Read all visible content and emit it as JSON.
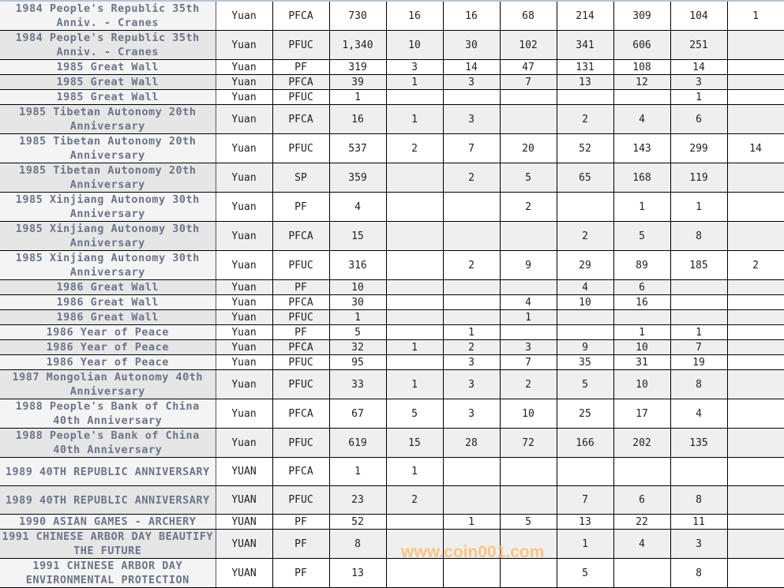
{
  "table": {
    "rows": [
      {
        "name": "1984 People's Republic 35th Anniv. - Cranes",
        "unit": "Yuan",
        "type": "PFCA",
        "total": "730",
        "grades": [
          "16",
          "16",
          "68",
          "214",
          "309",
          "104",
          "1"
        ]
      },
      {
        "name": "1984 People's Republic 35th Anniv. - Cranes",
        "unit": "Yuan",
        "type": "PFUC",
        "total": "1,340",
        "grades": [
          "10",
          "30",
          "102",
          "341",
          "606",
          "251",
          ""
        ]
      },
      {
        "name": "1985 Great Wall",
        "unit": "Yuan",
        "type": "PF",
        "total": "319",
        "grades": [
          "3",
          "14",
          "47",
          "131",
          "108",
          "14",
          ""
        ]
      },
      {
        "name": "1985 Great Wall",
        "unit": "Yuan",
        "type": "PFCA",
        "total": "39",
        "grades": [
          "1",
          "3",
          "7",
          "13",
          "12",
          "3",
          ""
        ]
      },
      {
        "name": "1985 Great Wall",
        "unit": "Yuan",
        "type": "PFUC",
        "total": "1",
        "grades": [
          "",
          "",
          "",
          "",
          "",
          "1",
          ""
        ]
      },
      {
        "name": "1985 Tibetan Autonomy 20th Anniversary",
        "unit": "Yuan",
        "type": "PFCA",
        "total": "16",
        "grades": [
          "1",
          "3",
          "",
          "2",
          "4",
          "6",
          ""
        ]
      },
      {
        "name": "1985 Tibetan Autonomy 20th Anniversary",
        "unit": "Yuan",
        "type": "PFUC",
        "total": "537",
        "grades": [
          "2",
          "7",
          "20",
          "52",
          "143",
          "299",
          "14"
        ]
      },
      {
        "name": "1985 Tibetan Autonomy 20th Anniversary",
        "unit": "Yuan",
        "type": "SP",
        "total": "359",
        "grades": [
          "",
          "2",
          "5",
          "65",
          "168",
          "119",
          ""
        ]
      },
      {
        "name": "1985 Xinjiang Autonomy 30th Anniversary",
        "unit": "Yuan",
        "type": "PF",
        "total": "4",
        "grades": [
          "",
          "",
          "2",
          "",
          "1",
          "1",
          ""
        ]
      },
      {
        "name": "1985 Xinjiang Autonomy 30th Anniversary",
        "unit": "Yuan",
        "type": "PFCA",
        "total": "15",
        "grades": [
          "",
          "",
          "",
          "2",
          "5",
          "8",
          ""
        ]
      },
      {
        "name": "1985 Xinjiang Autonomy 30th Anniversary",
        "unit": "Yuan",
        "type": "PFUC",
        "total": "316",
        "grades": [
          "",
          "2",
          "9",
          "29",
          "89",
          "185",
          "2"
        ]
      },
      {
        "name": "1986 Great Wall",
        "unit": "Yuan",
        "type": "PF",
        "total": "10",
        "grades": [
          "",
          "",
          "",
          "4",
          "6",
          "",
          ""
        ]
      },
      {
        "name": "1986 Great Wall",
        "unit": "Yuan",
        "type": "PFCA",
        "total": "30",
        "grades": [
          "",
          "",
          "4",
          "10",
          "16",
          "",
          ""
        ]
      },
      {
        "name": "1986 Great Wall",
        "unit": "Yuan",
        "type": "PFUC",
        "total": "1",
        "grades": [
          "",
          "",
          "1",
          "",
          "",
          "",
          ""
        ]
      },
      {
        "name": "1986 Year of Peace",
        "unit": "Yuan",
        "type": "PF",
        "total": "5",
        "grades": [
          "",
          "1",
          "",
          "",
          "1",
          "1",
          ""
        ]
      },
      {
        "name": "1986 Year of Peace",
        "unit": "Yuan",
        "type": "PFCA",
        "total": "32",
        "grades": [
          "1",
          "2",
          "3",
          "9",
          "10",
          "7",
          ""
        ]
      },
      {
        "name": "1986 Year of Peace",
        "unit": "Yuan",
        "type": "PFUC",
        "total": "95",
        "grades": [
          "",
          "3",
          "7",
          "35",
          "31",
          "19",
          ""
        ]
      },
      {
        "name": "1987 Mongolian Autonomy 40th Anniversary",
        "unit": "Yuan",
        "type": "PFUC",
        "total": "33",
        "grades": [
          "1",
          "3",
          "2",
          "5",
          "10",
          "8",
          ""
        ]
      },
      {
        "name": "1988 People's Bank of China 40th Anniversary",
        "unit": "Yuan",
        "type": "PFCA",
        "total": "67",
        "grades": [
          "5",
          "3",
          "10",
          "25",
          "17",
          "4",
          ""
        ]
      },
      {
        "name": "1988 People's Bank of China 40th Anniversary",
        "unit": "Yuan",
        "type": "PFUC",
        "total": "619",
        "grades": [
          "15",
          "28",
          "72",
          "166",
          "202",
          "135",
          ""
        ]
      },
      {
        "name": "1989 40TH REPUBLIC ANNIVERSARY",
        "unit": "YUAN",
        "type": "PFCA",
        "total": "1",
        "grades": [
          "1",
          "",
          "",
          "",
          "",
          "",
          ""
        ]
      },
      {
        "name": "1989 40TH REPUBLIC ANNIVERSARY",
        "unit": "YUAN",
        "type": "PFUC",
        "total": "23",
        "grades": [
          "2",
          "",
          "",
          "7",
          "6",
          "8",
          ""
        ]
      },
      {
        "name": "1990 ASIAN GAMES - ARCHERY",
        "unit": "YUAN",
        "type": "PF",
        "total": "52",
        "grades": [
          "",
          "1",
          "5",
          "13",
          "22",
          "11",
          ""
        ]
      },
      {
        "name": "1991 CHINESE ARBOR DAY BEAUTIFY THE FUTURE",
        "unit": "YUAN",
        "type": "PF",
        "total": "8",
        "grades": [
          "",
          "",
          "",
          "1",
          "4",
          "3",
          ""
        ]
      },
      {
        "name": "1991 CHINESE ARBOR DAY ENVIRONMENTAL PROTECTION",
        "unit": "YUAN",
        "type": "PF",
        "total": "13",
        "grades": [
          "",
          "",
          "",
          "5",
          "",
          "8",
          ""
        ]
      }
    ]
  },
  "watermark": "www.coin001.com"
}
